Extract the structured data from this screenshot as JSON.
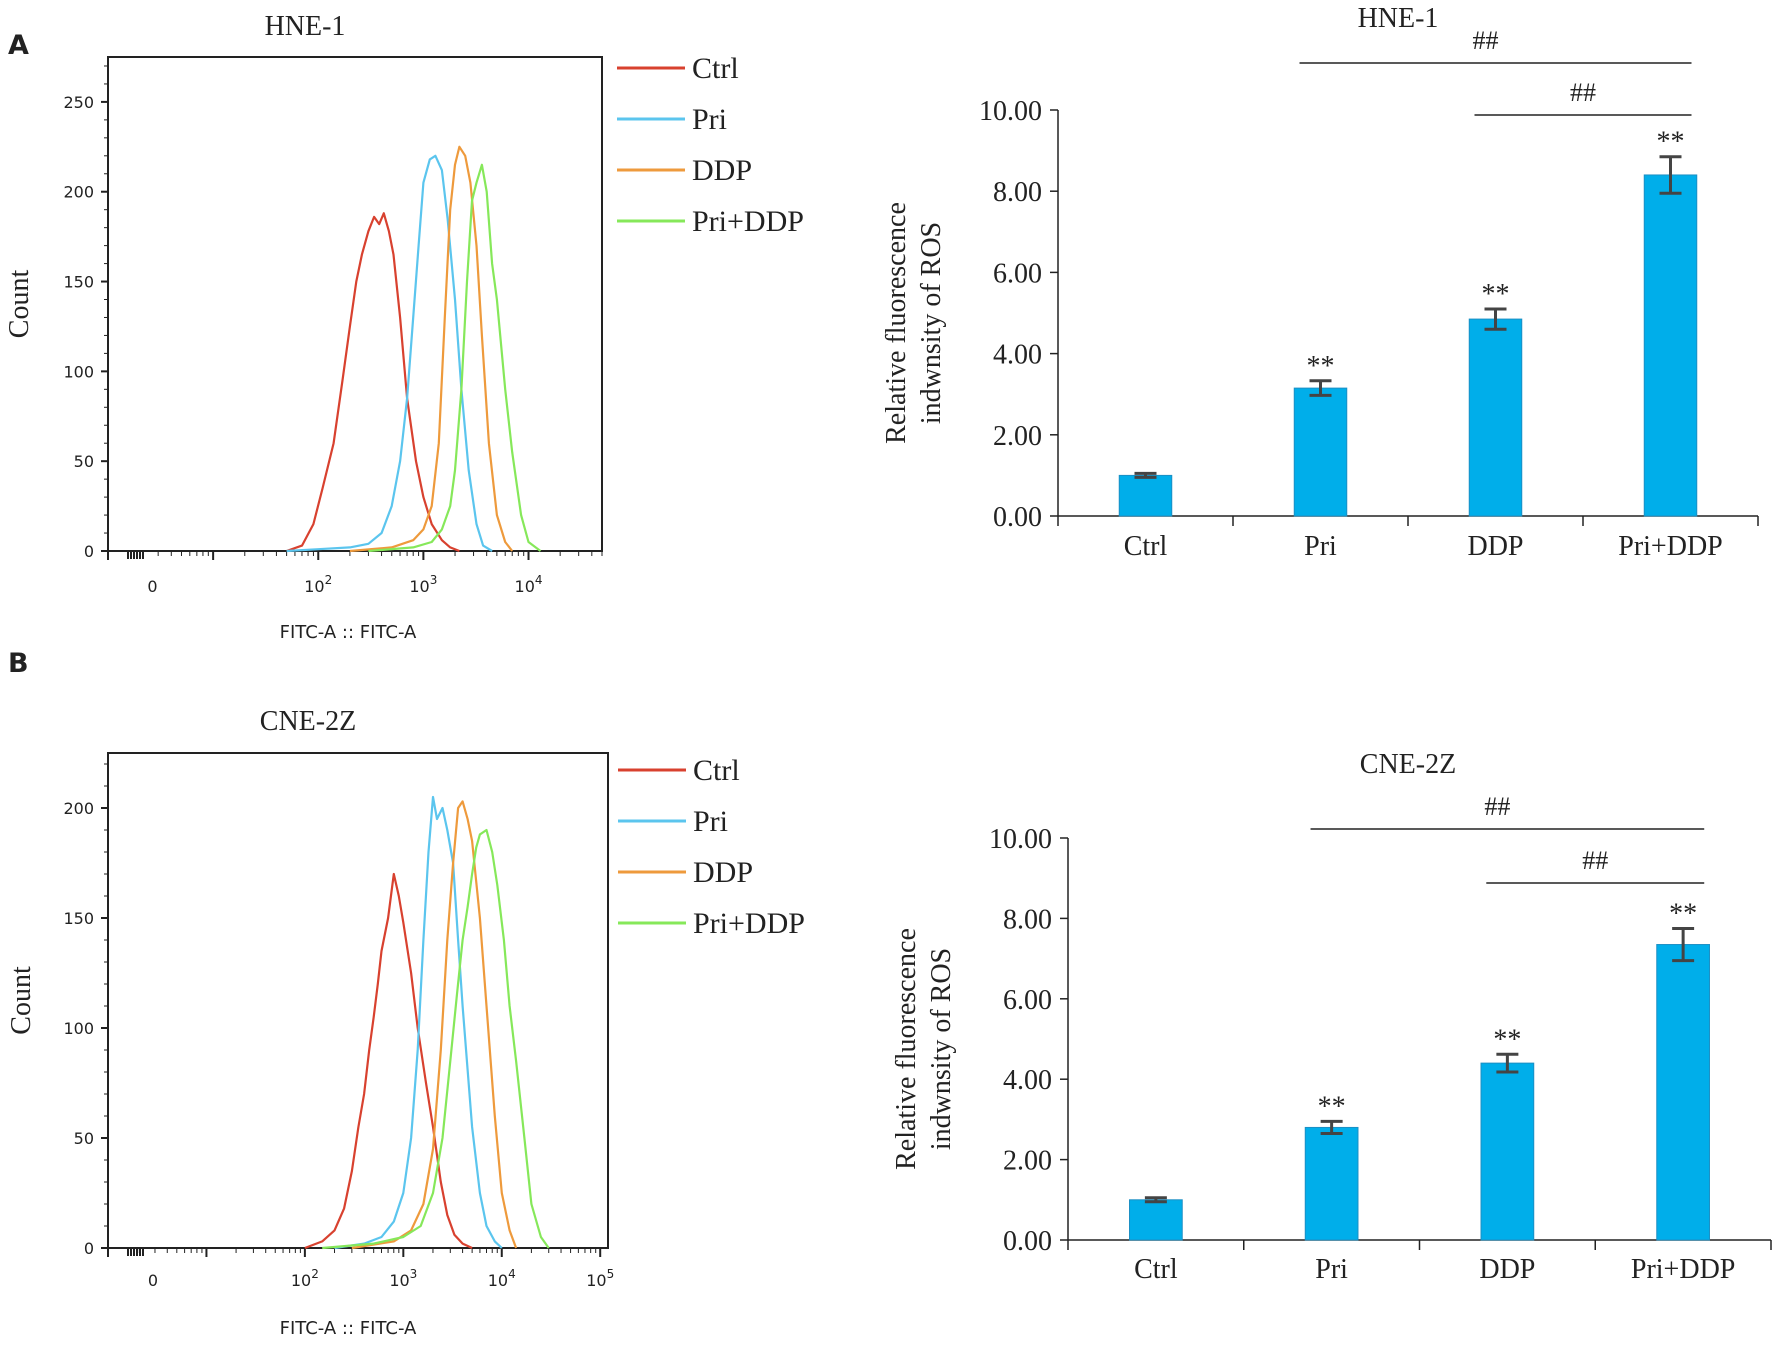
{
  "panels": [
    {
      "letter": "A"
    },
    {
      "letter": "B"
    }
  ],
  "chart_data": [
    {
      "type": "line",
      "title": "HNE-1",
      "xlabel": "FITC-A :: FITC-A",
      "ylabel": "Count",
      "x_scale": "log",
      "xlim": [
        1,
        50000
      ],
      "ylim": [
        0,
        275
      ],
      "x_ticks": [
        {
          "label": "0",
          "sup": ""
        },
        {
          "label": "10",
          "sup": "2"
        },
        {
          "label": "10",
          "sup": "3"
        },
        {
          "label": "10",
          "sup": "4"
        }
      ],
      "y_ticks": [
        "0",
        "50",
        "100",
        "150",
        "200",
        "250"
      ],
      "series": [
        {
          "name": "Ctrl",
          "color": "#d8412f",
          "x": [
            50,
            70,
            90,
            110,
            140,
            170,
            200,
            230,
            260,
            300,
            340,
            380,
            420,
            470,
            520,
            600,
            700,
            850,
            1000,
            1200,
            1500,
            1800,
            2200
          ],
          "y": [
            0,
            3,
            15,
            35,
            60,
            95,
            125,
            150,
            165,
            178,
            186,
            182,
            188,
            178,
            165,
            130,
            85,
            50,
            30,
            15,
            6,
            2,
            0
          ]
        },
        {
          "name": "Pri",
          "color": "#5bc5ee",
          "x": [
            50,
            100,
            200,
            300,
            400,
            500,
            600,
            700,
            800,
            900,
            1000,
            1150,
            1300,
            1500,
            1700,
            2000,
            2300,
            2700,
            3200,
            3700,
            4500
          ],
          "y": [
            0,
            1,
            2,
            4,
            10,
            25,
            50,
            85,
            130,
            170,
            205,
            218,
            220,
            212,
            185,
            140,
            90,
            45,
            15,
            3,
            0
          ]
        },
        {
          "name": "DDP",
          "color": "#ee9a3c",
          "x": [
            200,
            500,
            800,
            1000,
            1200,
            1400,
            1600,
            1800,
            2000,
            2200,
            2500,
            2800,
            3200,
            3600,
            4200,
            5000,
            6000,
            7000
          ],
          "y": [
            0,
            2,
            6,
            12,
            25,
            60,
            130,
            190,
            215,
            225,
            220,
            205,
            170,
            120,
            60,
            20,
            5,
            0
          ]
        },
        {
          "name": "Pri+DDP",
          "color": "#86e85a",
          "x": [
            300,
            800,
            1200,
            1500,
            1800,
            2000,
            2300,
            2600,
            2900,
            3200,
            3600,
            4000,
            4500,
            5000,
            6000,
            7000,
            8500,
            10000,
            13000
          ],
          "y": [
            0,
            2,
            5,
            12,
            25,
            45,
            90,
            150,
            195,
            205,
            215,
            200,
            160,
            140,
            90,
            55,
            20,
            5,
            0
          ]
        }
      ]
    },
    {
      "type": "bar",
      "title": "HNE-1",
      "ylabel": "Relative fluorescence indwnsity of ROS",
      "ylim": [
        0,
        10
      ],
      "y_ticks": [
        "0.00",
        "2.00",
        "4.00",
        "6.00",
        "8.00",
        "10.00"
      ],
      "categories": [
        "Ctrl",
        "Pri",
        "DDP",
        "Pri+DDP"
      ],
      "values": [
        1.0,
        3.15,
        4.85,
        8.4
      ],
      "errors": [
        0.05,
        0.18,
        0.25,
        0.45
      ],
      "bar_color": "#00aeea",
      "sig_marks": [
        "",
        "**",
        "**",
        "**"
      ],
      "brackets": [
        {
          "from": 1,
          "to": 3,
          "label": "##"
        },
        {
          "from": 2,
          "to": 3,
          "label": "##"
        }
      ]
    },
    {
      "type": "line",
      "title": "CNE-2Z",
      "xlabel": "FITC-A :: FITC-A",
      "ylabel": "Count",
      "x_scale": "log",
      "xlim": [
        1,
        120000
      ],
      "ylim": [
        0,
        225
      ],
      "x_ticks": [
        {
          "label": "0",
          "sup": ""
        },
        {
          "label": "10",
          "sup": "2"
        },
        {
          "label": "10",
          "sup": "3"
        },
        {
          "label": "10",
          "sup": "4"
        },
        {
          "label": "10",
          "sup": "5"
        }
      ],
      "y_ticks": [
        "0",
        "50",
        "100",
        "150",
        "200"
      ],
      "series": [
        {
          "name": "Ctrl",
          "color": "#d8412f",
          "x": [
            100,
            150,
            200,
            250,
            300,
            350,
            400,
            450,
            500,
            550,
            600,
            700,
            800,
            900,
            1000,
            1200,
            1400,
            1700,
            2000,
            2400,
            2800,
            3300,
            4000,
            5000
          ],
          "y": [
            0,
            3,
            8,
            18,
            35,
            55,
            70,
            90,
            105,
            120,
            135,
            150,
            170,
            160,
            148,
            125,
            100,
            75,
            55,
            30,
            15,
            6,
            2,
            0
          ]
        },
        {
          "name": "Pri",
          "color": "#5bc5ee",
          "x": [
            200,
            400,
            600,
            800,
            1000,
            1200,
            1400,
            1600,
            1800,
            2000,
            2200,
            2500,
            2800,
            3200,
            3600,
            4000,
            5000,
            6000,
            7000,
            8500,
            10000
          ],
          "y": [
            0,
            2,
            5,
            12,
            25,
            50,
            90,
            140,
            180,
            205,
            195,
            200,
            190,
            175,
            140,
            110,
            55,
            25,
            10,
            3,
            0
          ]
        },
        {
          "name": "DDP",
          "color": "#ee9a3c",
          "x": [
            300,
            800,
            1200,
            1600,
            2000,
            2400,
            2800,
            3200,
            3600,
            4000,
            4500,
            5000,
            6000,
            7000,
            8500,
            10000,
            12000,
            14000
          ],
          "y": [
            0,
            3,
            8,
            20,
            45,
            90,
            140,
            175,
            200,
            203,
            195,
            185,
            150,
            110,
            60,
            25,
            8,
            0
          ]
        },
        {
          "name": "Pri+DDP",
          "color": "#86e85a",
          "x": [
            150,
            500,
            1000,
            1500,
            2000,
            2500,
            3000,
            3500,
            4000,
            4500,
            5000,
            5500,
            6000,
            7000,
            8000,
            9000,
            10500,
            12000,
            14000,
            17000,
            20000,
            25000,
            30000
          ],
          "y": [
            0,
            2,
            5,
            10,
            25,
            50,
            85,
            115,
            140,
            155,
            170,
            182,
            188,
            190,
            180,
            165,
            140,
            110,
            85,
            50,
            20,
            5,
            0
          ]
        }
      ]
    },
    {
      "type": "bar",
      "title": "CNE-2Z",
      "ylabel": "Relative fluorescence indwnsity of ROS",
      "ylim": [
        0,
        10
      ],
      "y_ticks": [
        "0.00",
        "2.00",
        "4.00",
        "6.00",
        "8.00",
        "10.00"
      ],
      "categories": [
        "Ctrl",
        "Pri",
        "DDP",
        "Pri+DDP"
      ],
      "values": [
        1.0,
        2.8,
        4.4,
        7.35
      ],
      "errors": [
        0.05,
        0.15,
        0.22,
        0.4
      ],
      "bar_color": "#00aeea",
      "sig_marks": [
        "",
        "**",
        "**",
        "**"
      ],
      "brackets": [
        {
          "from": 1,
          "to": 3,
          "label": "##"
        },
        {
          "from": 2,
          "to": 3,
          "label": "##"
        }
      ]
    }
  ]
}
